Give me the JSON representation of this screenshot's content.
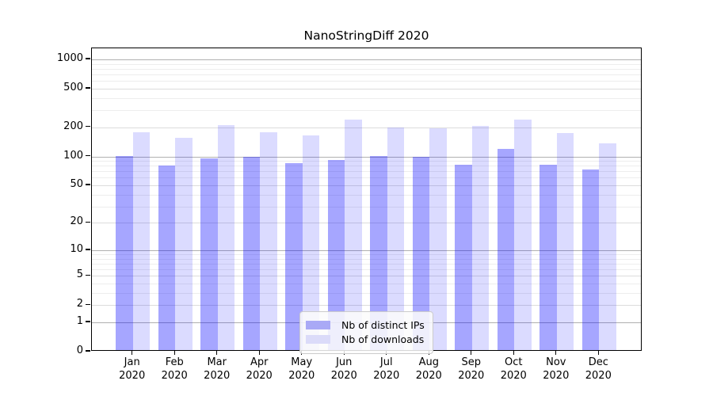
{
  "figure": {
    "title": "NanoStringDiff 2020"
  },
  "chart_data": {
    "type": "bar",
    "title": "NanoStringDiff 2020",
    "categories": [
      "Jan",
      "Feb",
      "Mar",
      "Apr",
      "May",
      "Jun",
      "Jul",
      "Aug",
      "Sep",
      "Oct",
      "Nov",
      "Dec"
    ],
    "year": "2020",
    "series": [
      {
        "name": "Nb of distinct IPs",
        "values": [
          98,
          77,
          92,
          95,
          82,
          88,
          98,
          95,
          79,
          115,
          79,
          70
        ]
      },
      {
        "name": "Nb of downloads",
        "values": [
          172,
          150,
          204,
          172,
          158,
          231,
          192,
          188,
          198,
          230,
          168,
          131
        ]
      }
    ],
    "yscale": "log1p",
    "yticks": [
      0,
      1,
      2,
      5,
      10,
      20,
      50,
      100,
      200,
      500,
      1000
    ],
    "ytick_labels": [
      "0",
      "1",
      "2",
      "5",
      "10",
      "20",
      "50",
      "100",
      "200",
      "500",
      "1000"
    ],
    "minor_yticks": [
      3,
      4,
      6,
      7,
      8,
      9,
      30,
      40,
      60,
      70,
      80,
      90,
      300,
      400,
      600,
      700,
      800,
      900
    ],
    "decade_ticks": [
      1,
      10,
      100,
      1000
    ],
    "ylim": [
      0,
      1300
    ],
    "grid": true,
    "legend_position": "lower-center",
    "colors": {
      "ips_bar": "rgba(0,0,255,0.35)",
      "downloads_bar": "rgba(0,0,255,0.14)",
      "ips_swatch": "#a9a9f6",
      "downloads_swatch": "#dbdbf9",
      "grid_decade": "#b0b0b0",
      "grid_labeled": "#dcdcdc",
      "grid_minor": "#ededed"
    }
  }
}
